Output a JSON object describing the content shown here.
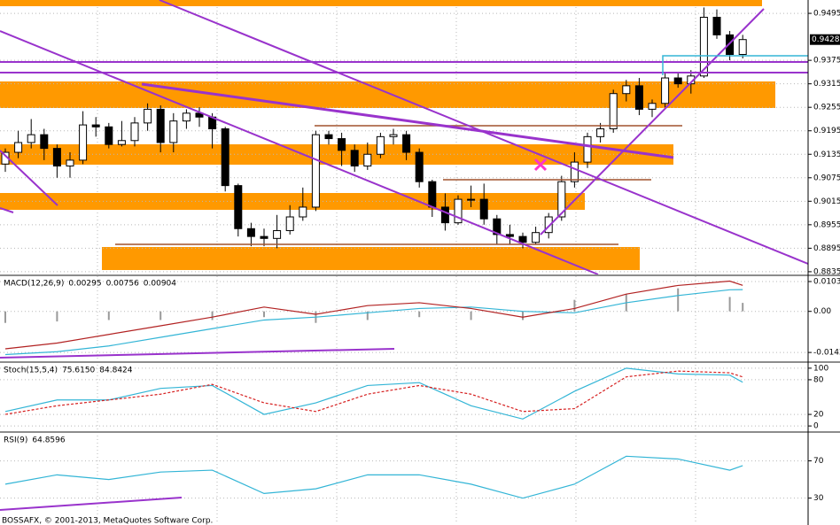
{
  "chart_data": [
    {
      "type": "candlestick",
      "ylim": [
        0.8828,
        0.9511
      ],
      "yticks": [
        0.8835,
        0.8895,
        0.8955,
        0.9015,
        0.9075,
        0.9135,
        0.9195,
        0.9255,
        0.9315,
        0.9375,
        0.9495
      ],
      "grid": true,
      "last_price": 0.9428,
      "up_color": "#ffffff",
      "down_color": "#000000",
      "open": [
        0.911,
        0.914,
        0.9165,
        0.9185,
        0.915,
        0.9105,
        0.912,
        0.921,
        0.9205,
        0.916,
        0.917,
        0.9215,
        0.925,
        0.9165,
        0.922,
        0.924,
        0.923,
        0.92,
        0.9055,
        0.8945,
        0.8925,
        0.892,
        0.894,
        0.8975,
        0.9,
        0.9185,
        0.9175,
        0.9145,
        0.9105,
        0.9135,
        0.918,
        0.9185,
        0.914,
        0.9065,
        0.9,
        0.896,
        0.902,
        0.902,
        0.897,
        0.893,
        0.8925,
        0.891,
        0.8935,
        0.8975,
        0.9065,
        0.9115,
        0.918,
        0.92,
        0.929,
        0.931,
        0.925,
        0.9265,
        0.933,
        0.9315,
        0.9335,
        0.9485,
        0.944,
        0.939
      ],
      "high": [
        0.915,
        0.9195,
        0.9225,
        0.92,
        0.916,
        0.914,
        0.9245,
        0.923,
        0.9215,
        0.922,
        0.923,
        0.9265,
        0.926,
        0.924,
        0.925,
        0.9255,
        0.924,
        0.9205,
        0.906,
        0.896,
        0.8945,
        0.898,
        0.9005,
        0.905,
        0.9195,
        0.9195,
        0.919,
        0.916,
        0.9165,
        0.919,
        0.92,
        0.9195,
        0.915,
        0.907,
        0.9035,
        0.903,
        0.9055,
        0.906,
        0.898,
        0.8955,
        0.8935,
        0.895,
        0.8985,
        0.908,
        0.914,
        0.919,
        0.9215,
        0.93,
        0.9325,
        0.933,
        0.9275,
        0.9345,
        0.9345,
        0.935,
        0.951,
        0.9505,
        0.945,
        0.944
      ],
      "low": [
        0.909,
        0.9125,
        0.915,
        0.912,
        0.9075,
        0.9075,
        0.911,
        0.918,
        0.915,
        0.9155,
        0.9155,
        0.9195,
        0.914,
        0.914,
        0.92,
        0.9205,
        0.915,
        0.904,
        0.8925,
        0.89,
        0.89,
        0.8895,
        0.893,
        0.8965,
        0.899,
        0.916,
        0.9105,
        0.909,
        0.9095,
        0.9125,
        0.916,
        0.912,
        0.905,
        0.8975,
        0.894,
        0.8955,
        0.9,
        0.8955,
        0.8905,
        0.8905,
        0.8895,
        0.8905,
        0.892,
        0.8965,
        0.905,
        0.91,
        0.9165,
        0.919,
        0.927,
        0.9235,
        0.923,
        0.9255,
        0.9305,
        0.929,
        0.933,
        0.943,
        0.9375,
        0.938
      ],
      "close": [
        0.914,
        0.9165,
        0.9185,
        0.915,
        0.9105,
        0.912,
        0.921,
        0.9205,
        0.916,
        0.917,
        0.9215,
        0.925,
        0.9165,
        0.922,
        0.924,
        0.923,
        0.92,
        0.9055,
        0.8945,
        0.8925,
        0.892,
        0.894,
        0.8975,
        0.9,
        0.9185,
        0.9175,
        0.9145,
        0.9105,
        0.9135,
        0.918,
        0.9185,
        0.914,
        0.9065,
        0.9,
        0.896,
        0.902,
        0.902,
        0.897,
        0.893,
        0.8925,
        0.891,
        0.8935,
        0.8975,
        0.9065,
        0.9115,
        0.918,
        0.92,
        0.929,
        0.931,
        0.925,
        0.9265,
        0.933,
        0.9315,
        0.9335,
        0.9485,
        0.944,
        0.939,
        0.9428
      ]
    },
    {
      "type": "macd",
      "name": "MACD(12,26,9)",
      "ylim": [
        -0.0173,
        0.0122
      ],
      "yticks": [
        -0.01426,
        {
          "value": 0,
          "label": "0.00"
        },
        0.01036
      ],
      "x": [
        0,
        4,
        8,
        12,
        16,
        20,
        24,
        28,
        32,
        36,
        40,
        44,
        48,
        52,
        56,
        57
      ],
      "series": [
        {
          "style": "histogram",
          "color": "#9a9a9a",
          "values": [
            -0.004,
            -0.0035,
            -0.003,
            -0.003,
            -0.003,
            -0.002,
            -0.004,
            -0.003,
            -0.002,
            -0.003,
            -0.003,
            0.004,
            0.006,
            0.008,
            0.005,
            0.00295
          ]
        },
        {
          "style": "line",
          "color": "#33b5d6",
          "values": [
            -0.015,
            -0.014,
            -0.012,
            -0.009,
            -0.006,
            -0.003,
            -0.002,
            -0.0005,
            0.001,
            0.0015,
            0.0,
            -0.0005,
            0.003,
            0.0055,
            0.0075,
            0.00756
          ]
        },
        {
          "style": "line",
          "color": "#b22222",
          "values": [
            -0.013,
            -0.011,
            -0.008,
            -0.005,
            -0.002,
            0.0015,
            -0.001,
            0.002,
            0.003,
            0.001,
            -0.002,
            0.001,
            0.006,
            0.009,
            0.0105,
            0.00904
          ]
        }
      ]
    },
    {
      "type": "line",
      "name": "Stoch(15,5,4)",
      "ylim": [
        -9,
        109
      ],
      "yticks": [
        0,
        20,
        80,
        100
      ],
      "x": [
        0,
        4,
        8,
        12,
        16,
        20,
        24,
        28,
        32,
        36,
        40,
        44,
        48,
        52,
        56,
        57
      ],
      "series": [
        {
          "style": "line",
          "color": "#33b5d6",
          "values": [
            25,
            45,
            45,
            65,
            70,
            20,
            40,
            70,
            75,
            35,
            12,
            60,
            100,
            90,
            88,
            75.615
          ],
          "value_labels": [
            null,
            null,
            null,
            null,
            null,
            null,
            null,
            null,
            null,
            null,
            null,
            null,
            null,
            null,
            null,
            "75.6150"
          ]
        },
        {
          "style": "dashed",
          "color": "#d62020",
          "values": [
            20,
            35,
            45,
            55,
            72,
            40,
            25,
            55,
            70,
            55,
            25,
            30,
            85,
            95,
            92,
            84.8424
          ]
        }
      ]
    },
    {
      "type": "line",
      "name": "RSI(9)",
      "ylim": [
        4,
        100
      ],
      "yticks": [
        30,
        70
      ],
      "x": [
        0,
        4,
        8,
        12,
        16,
        20,
        24,
        28,
        32,
        36,
        40,
        44,
        48,
        52,
        56,
        57
      ],
      "series": [
        {
          "style": "line",
          "color": "#33b5d6",
          "values": [
            45,
            55,
            50,
            58,
            60,
            35,
            40,
            55,
            55,
            45,
            30,
            45,
            75,
            72,
            60,
            64.8596
          ]
        }
      ]
    }
  ],
  "footer": "BOSSAFX, © 2001-2013, MetaQuotes Software Corp."
}
